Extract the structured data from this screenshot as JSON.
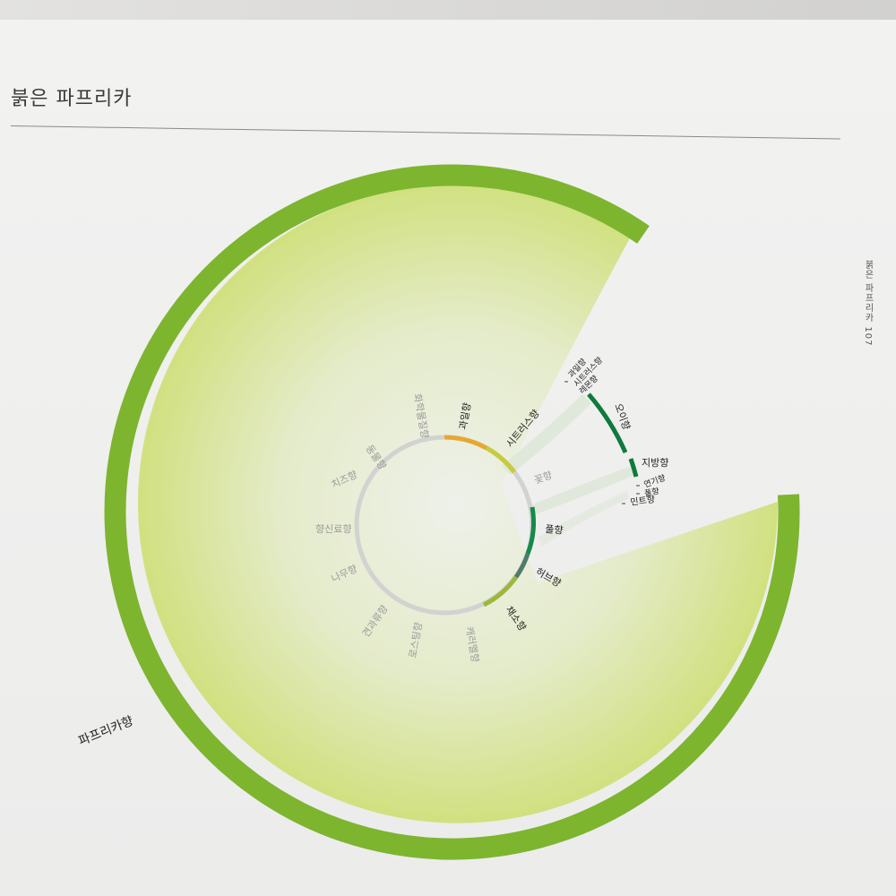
{
  "page": {
    "title": "붉은 파프리카",
    "running_head": "붉은 파프리카 107"
  },
  "wheel": {
    "ring_labels": [
      {
        "id": "fruity",
        "text": "과일향",
        "active": true
      },
      {
        "id": "citrus",
        "text": "시트러스향",
        "active": true
      },
      {
        "id": "flower",
        "text": "꽃향",
        "active": false
      },
      {
        "id": "grass",
        "text": "풀향",
        "active": true
      },
      {
        "id": "herb",
        "text": "허브향",
        "active": true
      },
      {
        "id": "vegetable",
        "text": "채소향",
        "active": true
      },
      {
        "id": "caramel",
        "text": "캐러멜향",
        "active": false
      },
      {
        "id": "roast",
        "text": "로스팅향",
        "active": false
      },
      {
        "id": "nut",
        "text": "견과류향",
        "active": false
      },
      {
        "id": "wood",
        "text": "나무향",
        "active": false
      },
      {
        "id": "spice",
        "text": "향신료향",
        "active": false
      },
      {
        "id": "cheese",
        "text": "치즈향",
        "active": false
      },
      {
        "id": "animal",
        "text": "동물향",
        "active": false
      },
      {
        "id": "chemical",
        "text": "화학물질향",
        "active": false
      }
    ],
    "outer_labels": [
      {
        "id": "paprika",
        "text": "파프리카향"
      },
      {
        "id": "cucumber",
        "text": "오이향"
      },
      {
        "id": "fatty",
        "text": "지방향"
      },
      {
        "id": "smoke",
        "text": "연기향"
      },
      {
        "id": "grass2",
        "text": "풀향"
      },
      {
        "id": "mint",
        "text": "민트향"
      },
      {
        "id": "fruity2",
        "text": "과일향"
      },
      {
        "id": "citrus2",
        "text": "시트러스향"
      },
      {
        "id": "lemon",
        "text": "레몬향"
      }
    ]
  },
  "colors": {
    "paprika_arc": "#7db52f",
    "paprika_fill_light": "#f1f3e6",
    "paprika_fill_dark": "#cfe07a",
    "cucumber_arc": "#0f7a3c",
    "fruity_seg": "#e6a833",
    "citrus_seg": "#c6cc3c",
    "grass_seg": "#158a4a",
    "herb_seg": "#4d7d6a",
    "vegetable_seg": "#9cb83a",
    "inactive_ring": "#d2d2d0"
  }
}
